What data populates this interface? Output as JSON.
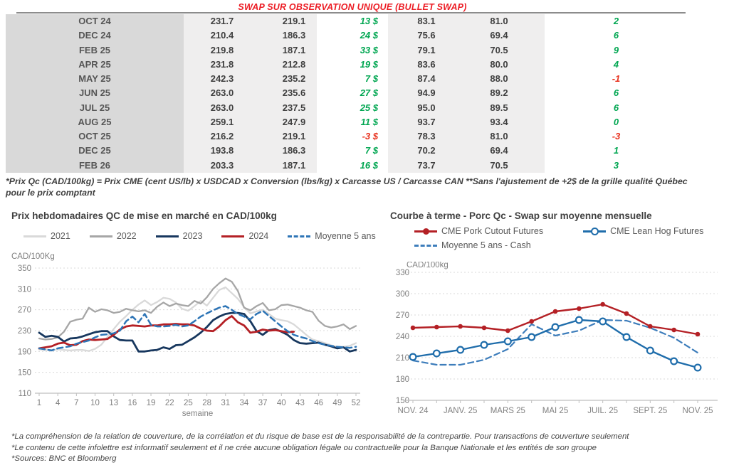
{
  "title": "SWAP SUR OBSERVATION UNIQUE (BULLET SWAP)",
  "colors": {
    "title_red": "#ec1c24",
    "positive_green": "#00a651",
    "negative_red": "#e8321f",
    "table_month_bg": "#d9d9d9",
    "table_value_bg": "#efeeee",
    "grid": "#d9d9d9",
    "axis_text": "#808080"
  },
  "table": {
    "rows": [
      {
        "month": "OCT 24",
        "values": [
          "231.7",
          "219.1",
          "13 $",
          "83.1",
          "81.0",
          "2"
        ]
      },
      {
        "month": "DEC 24",
        "values": [
          "210.4",
          "186.3",
          "24 $",
          "75.6",
          "69.4",
          "6"
        ]
      },
      {
        "month": "FEB 25",
        "values": [
          "219.8",
          "187.1",
          "33 $",
          "79.1",
          "70.5",
          "9"
        ]
      },
      {
        "month": "APR 25",
        "values": [
          "231.8",
          "212.8",
          "19 $",
          "83.6",
          "80.0",
          "4"
        ]
      },
      {
        "month": "MAY 25",
        "values": [
          "242.3",
          "235.2",
          "7 $",
          "87.4",
          "88.0",
          "-1"
        ]
      },
      {
        "month": "JUN 25",
        "values": [
          "263.0",
          "235.6",
          "27 $",
          "94.9",
          "89.2",
          "6"
        ]
      },
      {
        "month": "JUL 25",
        "values": [
          "263.0",
          "237.5",
          "25 $",
          "95.0",
          "89.5",
          "6"
        ]
      },
      {
        "month": "AUG 25",
        "values": [
          "259.1",
          "247.9",
          "11 $",
          "93.7",
          "93.4",
          "0"
        ]
      },
      {
        "month": "OCT 25",
        "values": [
          "216.2",
          "219.1",
          "-3 $",
          "78.3",
          "81.0",
          "-3"
        ]
      },
      {
        "month": "DEC 25",
        "values": [
          "193.8",
          "186.3",
          "7 $",
          "70.2",
          "69.4",
          "1"
        ]
      },
      {
        "month": "FEB 26",
        "values": [
          "203.3",
          "187.1",
          "16 $",
          "73.7",
          "70.5",
          "3"
        ]
      }
    ]
  },
  "footnote_line1": "*Prix Qc (CAD/100kg) = Prix CME (cent US/lb) x USDCAD x Conversion (lbs/kg) x Carcasse US / Carcasse CAN **Sans l'ajustement de +2$ de la grille qualité Québec",
  "footnote_line2": "pour le prix comptant",
  "chart_data": [
    {
      "type": "line",
      "title": "Prix hebdomadaires QC de mise en marché en CAD/100kg",
      "ylabel": "CAD/100Kg",
      "xlabel": "semaine",
      "ylim": [
        110,
        350
      ],
      "yticks": [
        110,
        150,
        190,
        230,
        270,
        310,
        350
      ],
      "xticks": [
        1,
        4,
        7,
        10,
        13,
        16,
        19,
        22,
        25,
        28,
        31,
        34,
        37,
        40,
        43,
        46,
        49,
        52
      ],
      "grid": true,
      "legend_position": "top",
      "series": [
        {
          "name": "2021",
          "color": "#d9d9d9",
          "width": 2.3,
          "values": [
            194,
            193,
            193,
            194,
            193,
            192,
            193,
            193,
            191,
            195,
            203,
            218,
            233,
            247,
            258,
            270,
            280,
            288,
            279,
            285,
            293,
            291,
            284,
            272,
            268,
            277,
            287,
            278,
            293,
            308,
            313,
            302,
            291,
            275,
            263,
            267,
            270,
            262,
            253,
            250,
            248,
            242,
            232,
            222,
            213,
            210,
            206,
            202,
            199,
            199,
            201,
            206
          ]
        },
        {
          "name": "2022",
          "color": "#a6a6a6",
          "width": 2.3,
          "values": [
            215,
            213,
            214,
            217,
            228,
            247,
            251,
            253,
            274,
            266,
            271,
            269,
            264,
            266,
            272,
            269,
            267,
            269,
            264,
            276,
            284,
            277,
            282,
            279,
            277,
            287,
            282,
            294,
            310,
            321,
            330,
            324,
            306,
            274,
            269,
            277,
            283,
            269,
            271,
            279,
            280,
            277,
            274,
            269,
            266,
            249,
            239,
            236,
            238,
            242,
            233,
            239
          ]
        },
        {
          "name": "2023",
          "color": "#17375e",
          "width": 2.8,
          "values": [
            226,
            218,
            220,
            218,
            209,
            215,
            216,
            219,
            223,
            227,
            229,
            229,
            219,
            212,
            211,
            211,
            190,
            190,
            192,
            193,
            198,
            195,
            202,
            203,
            210,
            217,
            226,
            237,
            250,
            257,
            262,
            264,
            264,
            262,
            248,
            229,
            222,
            231,
            233,
            228,
            222,
            212,
            206,
            205,
            206,
            207,
            203,
            200,
            196,
            198,
            190,
            193
          ]
        },
        {
          "name": "2024",
          "color": "#b42025",
          "width": 2.8,
          "values": [
            196,
            198,
            200,
            205,
            207,
            202,
            203,
            210,
            213,
            212,
            213,
            214,
            222,
            232,
            238,
            240,
            239,
            238,
            240,
            240,
            242,
            242,
            243,
            242,
            242,
            240,
            234,
            230,
            229,
            238,
            250,
            258,
            246,
            240,
            226,
            228,
            232,
            230,
            231,
            229,
            227,
            228,
            null,
            null,
            null,
            null,
            null,
            null,
            null,
            null,
            null,
            null
          ]
        },
        {
          "name": "Moyenne 5 ans",
          "color": "#2e75b6",
          "width": 2.5,
          "dash": true,
          "values": [
            196,
            194,
            192,
            196,
            198,
            200,
            205,
            208,
            211,
            217,
            222,
            223,
            225,
            230,
            248,
            257,
            246,
            262,
            241,
            238,
            238,
            239,
            241,
            238,
            240,
            248,
            257,
            263,
            269,
            274,
            277,
            270,
            262,
            257,
            252,
            262,
            268,
            258,
            248,
            238,
            229,
            222,
            218,
            215,
            210,
            206,
            203,
            201,
            199,
            198,
            197,
            199
          ]
        }
      ]
    },
    {
      "type": "line",
      "title": "Courbe à terme - Porc Qc - Swap sur moyenne mensuelle",
      "ylabel": "CAD/100kg",
      "ylim": [
        150,
        330
      ],
      "yticks": [
        150,
        180,
        210,
        240,
        270,
        300,
        330
      ],
      "n_points": 13,
      "tick_positions": [
        0,
        2,
        4,
        6,
        8,
        10,
        12
      ],
      "tick_labels": [
        "NOV. 24",
        "JANV. 25",
        "MARS 25",
        "MAI 25",
        "JUIL. 25",
        "SEPT. 25",
        "NOV. 25"
      ],
      "grid": true,
      "legend_position": "top",
      "series": [
        {
          "name": "CME Pork Cutout Futures",
          "color": "#b42025",
          "width": 2.4,
          "marker": "filled-circle",
          "values": [
            252,
            253,
            254,
            252,
            248,
            261,
            275,
            279,
            285,
            272,
            254,
            249,
            243
          ]
        },
        {
          "name": "CME Lean Hog Futures",
          "color": "#1f6dab",
          "width": 2.4,
          "marker": "open-circle",
          "values": [
            211,
            216,
            221,
            228,
            233,
            239,
            253,
            263,
            261,
            239,
            220,
            205,
            196
          ]
        },
        {
          "name": "Moyenne 5 ans - Cash",
          "color": "#3d7dbb",
          "width": 2.2,
          "dash": true,
          "values": [
            206,
            200,
            200,
            207,
            222,
            257,
            241,
            248,
            263,
            262,
            252,
            238,
            217
          ]
        }
      ]
    }
  ],
  "footer": {
    "line1": "*La compréhension de la relation de couverture, de la corrélation et du risque de base est de la responsabilité de la contrepartie. Pour transactions de couverture seulement",
    "line2": "*Le contenu de cette infolettre est informatif seulement et il ne crée aucune obligation légale ou contractuelle pour la Banque Nationale et les entités de son groupe",
    "line3": "*Sources: BNC et Bloomberg"
  }
}
